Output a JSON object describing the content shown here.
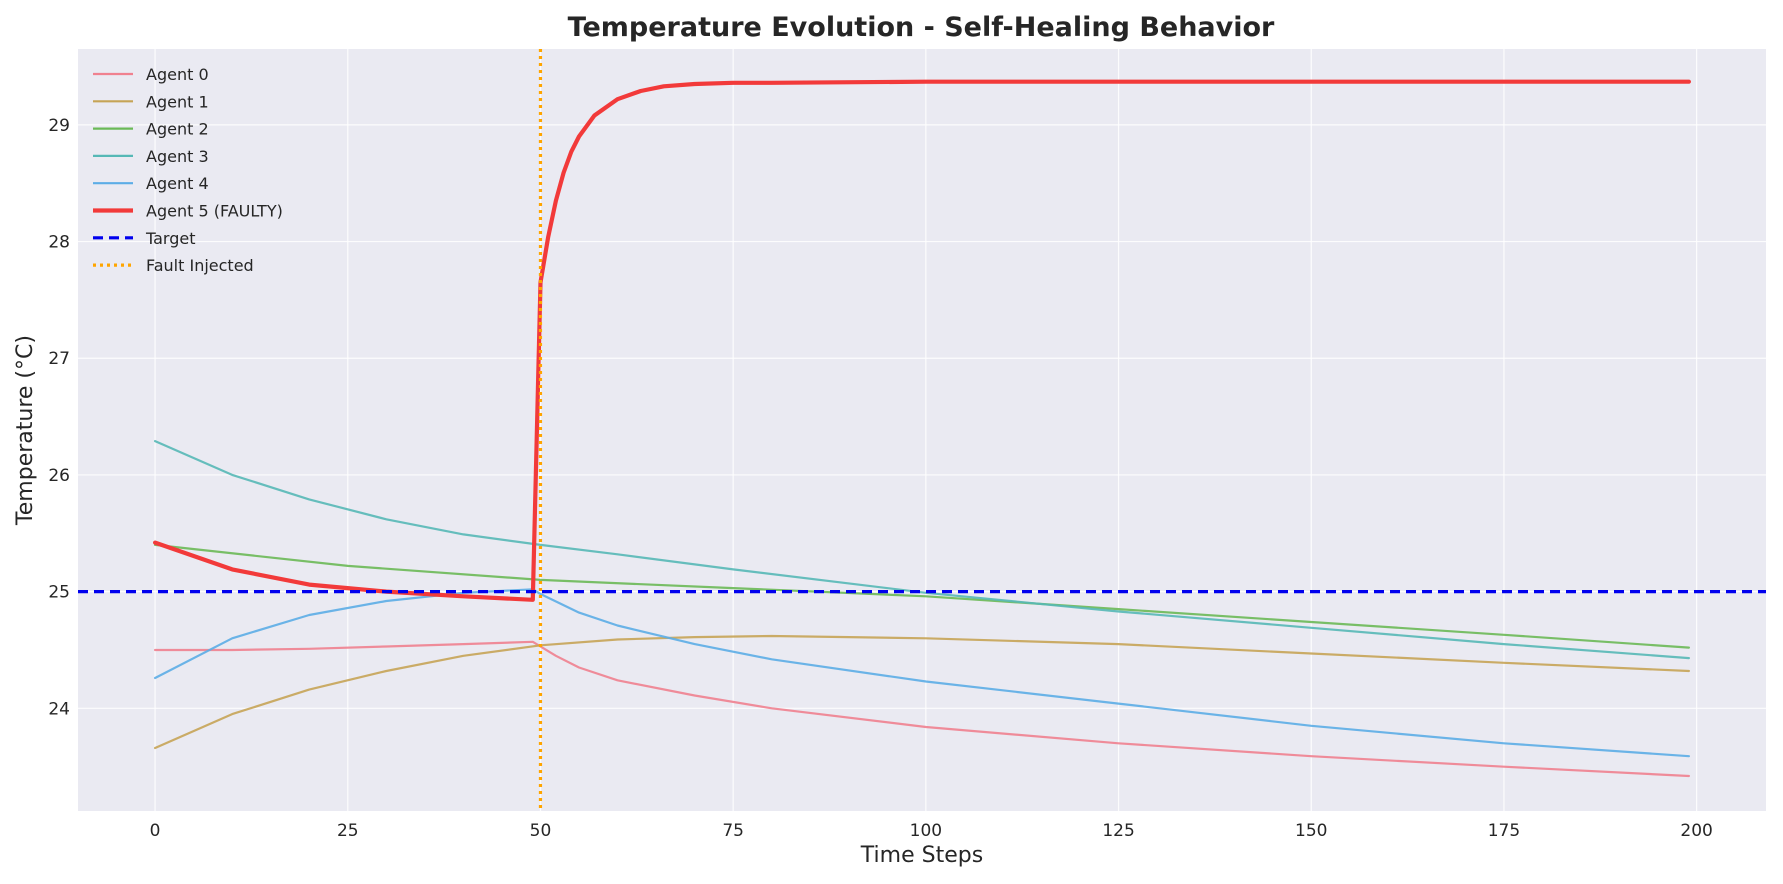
{
  "chart_data": {
    "type": "line",
    "title": "Temperature Evolution - Self-Healing Behavior",
    "xlabel": "Time Steps",
    "ylabel": "Temperature (°C)",
    "xlim": [
      -10,
      209
    ],
    "ylim": [
      23.12,
      29.65
    ],
    "xticks": [
      0,
      25,
      50,
      75,
      100,
      125,
      150,
      175,
      200
    ],
    "yticks": [
      24,
      25,
      26,
      27,
      28,
      29
    ],
    "grid": true,
    "legend_position": "top-left",
    "background": "#eaeaf2",
    "series": [
      {
        "name": "Agent 0",
        "color": "#f0818f",
        "width": 2.2,
        "dash": "",
        "x": [
          0,
          10,
          20,
          30,
          40,
          49,
          52,
          55,
          60,
          70,
          80,
          100,
          125,
          150,
          175,
          199
        ],
        "y": [
          24.5,
          24.5,
          24.51,
          24.53,
          24.55,
          24.57,
          24.45,
          24.35,
          24.24,
          24.11,
          24.0,
          23.84,
          23.7,
          23.59,
          23.5,
          23.42
        ]
      },
      {
        "name": "Agent 1",
        "color": "#c6a456",
        "width": 2.2,
        "dash": "",
        "x": [
          0,
          10,
          20,
          30,
          40,
          50,
          60,
          70,
          80,
          90,
          100,
          125,
          150,
          175,
          199
        ],
        "y": [
          23.66,
          23.95,
          24.16,
          24.32,
          24.45,
          24.54,
          24.59,
          24.61,
          24.62,
          24.61,
          24.6,
          24.55,
          24.47,
          24.39,
          24.32
        ]
      },
      {
        "name": "Agent 2",
        "color": "#6bb957",
        "width": 2.2,
        "dash": "",
        "x": [
          0,
          25,
          50,
          75,
          100,
          125,
          150,
          175,
          199
        ],
        "y": [
          25.4,
          25.22,
          25.1,
          25.03,
          24.96,
          24.85,
          24.74,
          24.63,
          24.52
        ]
      },
      {
        "name": "Agent 3",
        "color": "#56b8b6",
        "width": 2.2,
        "dash": "",
        "x": [
          0,
          10,
          20,
          30,
          40,
          50,
          60,
          75,
          100,
          125,
          150,
          175,
          199
        ],
        "y": [
          26.29,
          26.0,
          25.79,
          25.62,
          25.49,
          25.4,
          25.32,
          25.19,
          24.99,
          24.83,
          24.69,
          24.55,
          24.43
        ]
      },
      {
        "name": "Agent 4",
        "color": "#5cade6",
        "width": 2.2,
        "dash": "",
        "x": [
          0,
          10,
          20,
          30,
          40,
          49,
          50,
          55,
          60,
          70,
          80,
          100,
          125,
          150,
          175,
          199
        ],
        "y": [
          24.26,
          24.6,
          24.8,
          24.92,
          24.99,
          25.02,
          24.98,
          24.82,
          24.71,
          24.55,
          24.42,
          24.23,
          24.04,
          23.85,
          23.7,
          23.59
        ]
      },
      {
        "name": "Agent 5 (FAULTY)",
        "color": "#f23a3a",
        "width": 4.2,
        "dash": "",
        "x": [
          0,
          10,
          20,
          30,
          40,
          49,
          50,
          51,
          52,
          53,
          54,
          55,
          57,
          60,
          63,
          66,
          70,
          75,
          80,
          100,
          150,
          199
        ],
        "y": [
          25.42,
          25.19,
          25.06,
          25.0,
          24.96,
          24.93,
          27.65,
          28.04,
          28.35,
          28.59,
          28.77,
          28.9,
          29.08,
          29.22,
          29.29,
          29.33,
          29.35,
          29.36,
          29.36,
          29.37,
          29.37,
          29.37
        ]
      }
    ],
    "annotations": [
      {
        "name": "Target",
        "kind": "hline",
        "value": 25,
        "color": "#0000ee",
        "width": 3.2,
        "dash": "10,6"
      },
      {
        "name": "Fault Injected",
        "kind": "vline",
        "value": 50,
        "color": "#ffa500",
        "width": 3.2,
        "dash": "3,4"
      }
    ]
  }
}
